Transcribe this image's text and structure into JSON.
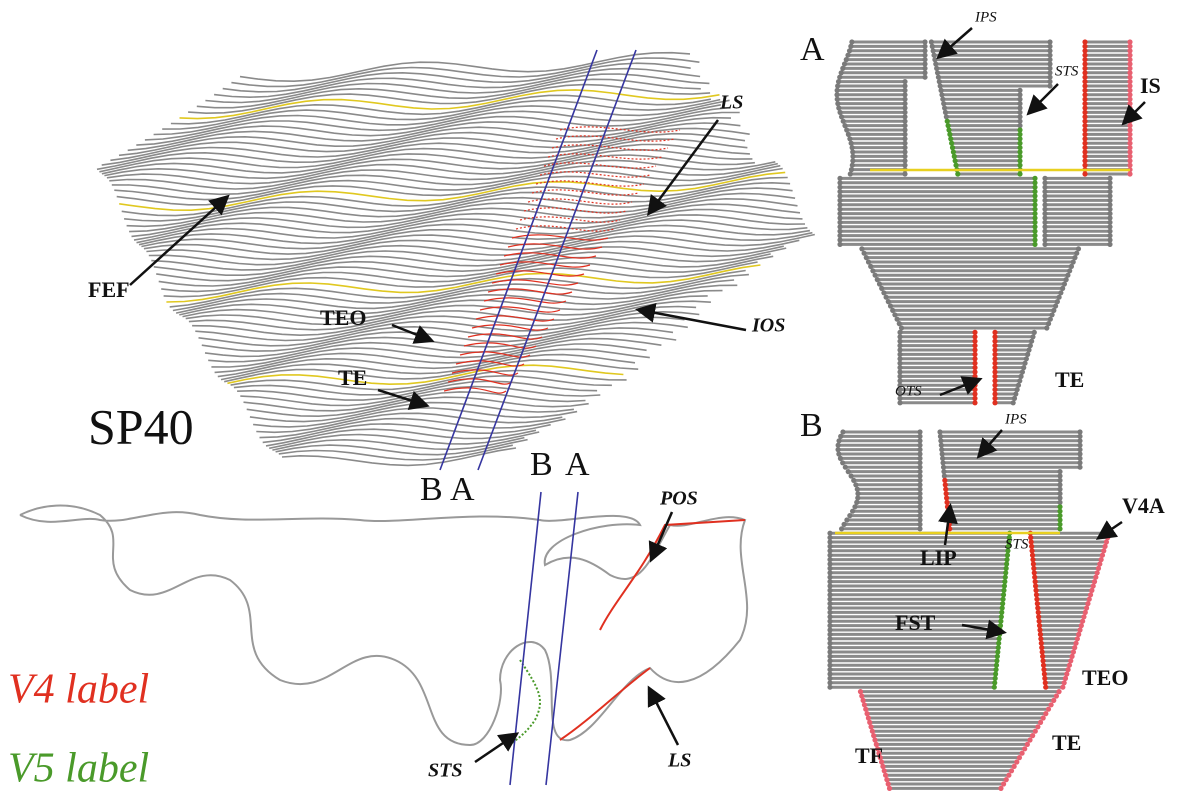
{
  "main_view": {
    "title": "SP40",
    "labels": {
      "fef": "FEF",
      "teo": "TEO",
      "te": "TE",
      "ls": "LS",
      "ios": "IOS"
    },
    "section_top": {
      "b": "B",
      "a": "A"
    }
  },
  "section_view": {
    "section_top": {
      "b": "B",
      "a": "A"
    },
    "labels": {
      "pos": "POS",
      "sts": "STS",
      "ls": "LS"
    }
  },
  "legend": {
    "v4": "V4 label",
    "v5": "V5 label"
  },
  "flatmap_a": {
    "title": "A",
    "labels": {
      "ips": "IPS",
      "sts": "STS",
      "is": "IS",
      "ots": "OTS",
      "te": "TE"
    }
  },
  "flatmap_b": {
    "title": "B",
    "labels": {
      "ips": "IPS",
      "lip": "LIP",
      "sts": "STS",
      "v4a": "V4A",
      "fst": "FST",
      "teo": "TEO",
      "te": "TE",
      "tf": "TF"
    }
  }
}
